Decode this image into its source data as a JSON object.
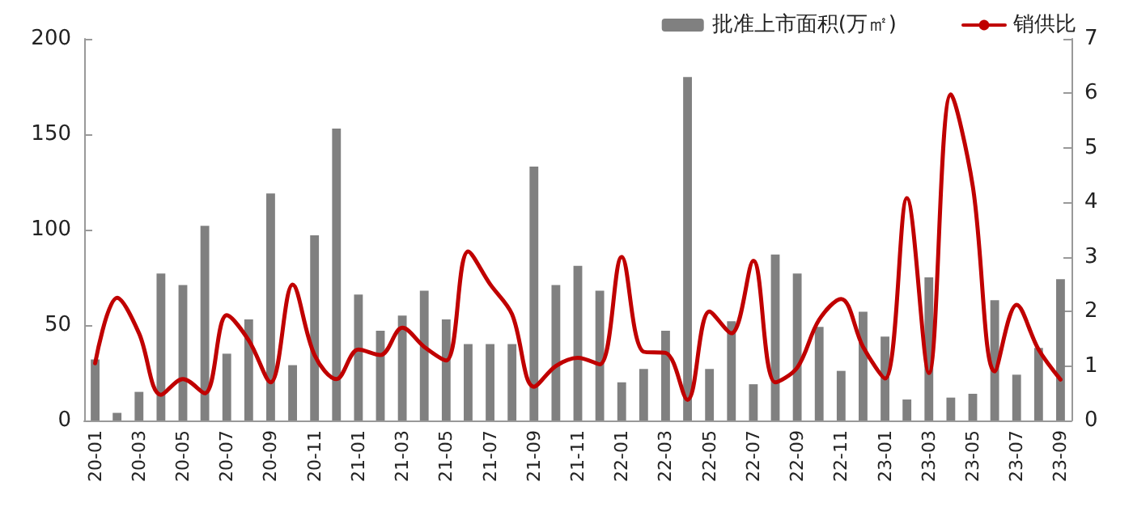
{
  "chart_data": {
    "type": "bar",
    "categories": [
      "20-01",
      null,
      "20-03",
      null,
      "20-05",
      null,
      "20-07",
      null,
      "20-09",
      null,
      "20-11",
      null,
      "21-01",
      null,
      "21-03",
      null,
      "21-05",
      null,
      "21-07",
      null,
      "21-09",
      null,
      "21-11",
      null,
      "22-01",
      null,
      "22-03",
      null,
      "22-05",
      null,
      "22-07",
      null,
      "22-09",
      null,
      "22-11",
      null,
      "23-01",
      null,
      "23-03",
      null,
      "23-05",
      null,
      "23-07",
      null,
      "23-09"
    ],
    "series": [
      {
        "name": "批准上市面积(万㎡)",
        "color": "#808080",
        "values": [
          32,
          4,
          15,
          77,
          71,
          102,
          35,
          53,
          119,
          29,
          97,
          153,
          66,
          47,
          55,
          68,
          53,
          40,
          40,
          40,
          133,
          71,
          81,
          68,
          20,
          27,
          47,
          180,
          27,
          52,
          19,
          87,
          77,
          49,
          26,
          57,
          44,
          11,
          75,
          12,
          14,
          63,
          24,
          38,
          74
        ]
      },
      {
        "name": "销供比",
        "type": "line",
        "axis": "y2",
        "color": "#c00000",
        "values": [
          1.05,
          2.25,
          1.6,
          0.47,
          0.76,
          0.5,
          1.93,
          1.47,
          0.7,
          2.49,
          1.2,
          0.76,
          1.3,
          1.2,
          1.7,
          1.35,
          1.1,
          3.1,
          2.5,
          1.95,
          0.62,
          1.0,
          1.15,
          1.03,
          3.0,
          1.26,
          1.24,
          0.38,
          2.0,
          1.6,
          2.93,
          0.7,
          0.97,
          1.85,
          2.23,
          1.35,
          0.77,
          4.08,
          0.87,
          5.98,
          4.3,
          0.9,
          2.12,
          1.3,
          0.75
        ]
      }
    ],
    "ylim": [
      0,
      200
    ],
    "yticks": [
      0,
      50,
      100,
      150,
      200
    ],
    "y2lim": [
      0,
      7
    ],
    "y2ticks": [
      0,
      1,
      2,
      3,
      4,
      5,
      6,
      7
    ],
    "grid": false,
    "legend": "top right",
    "marker": "none",
    "line_style": "solid"
  }
}
